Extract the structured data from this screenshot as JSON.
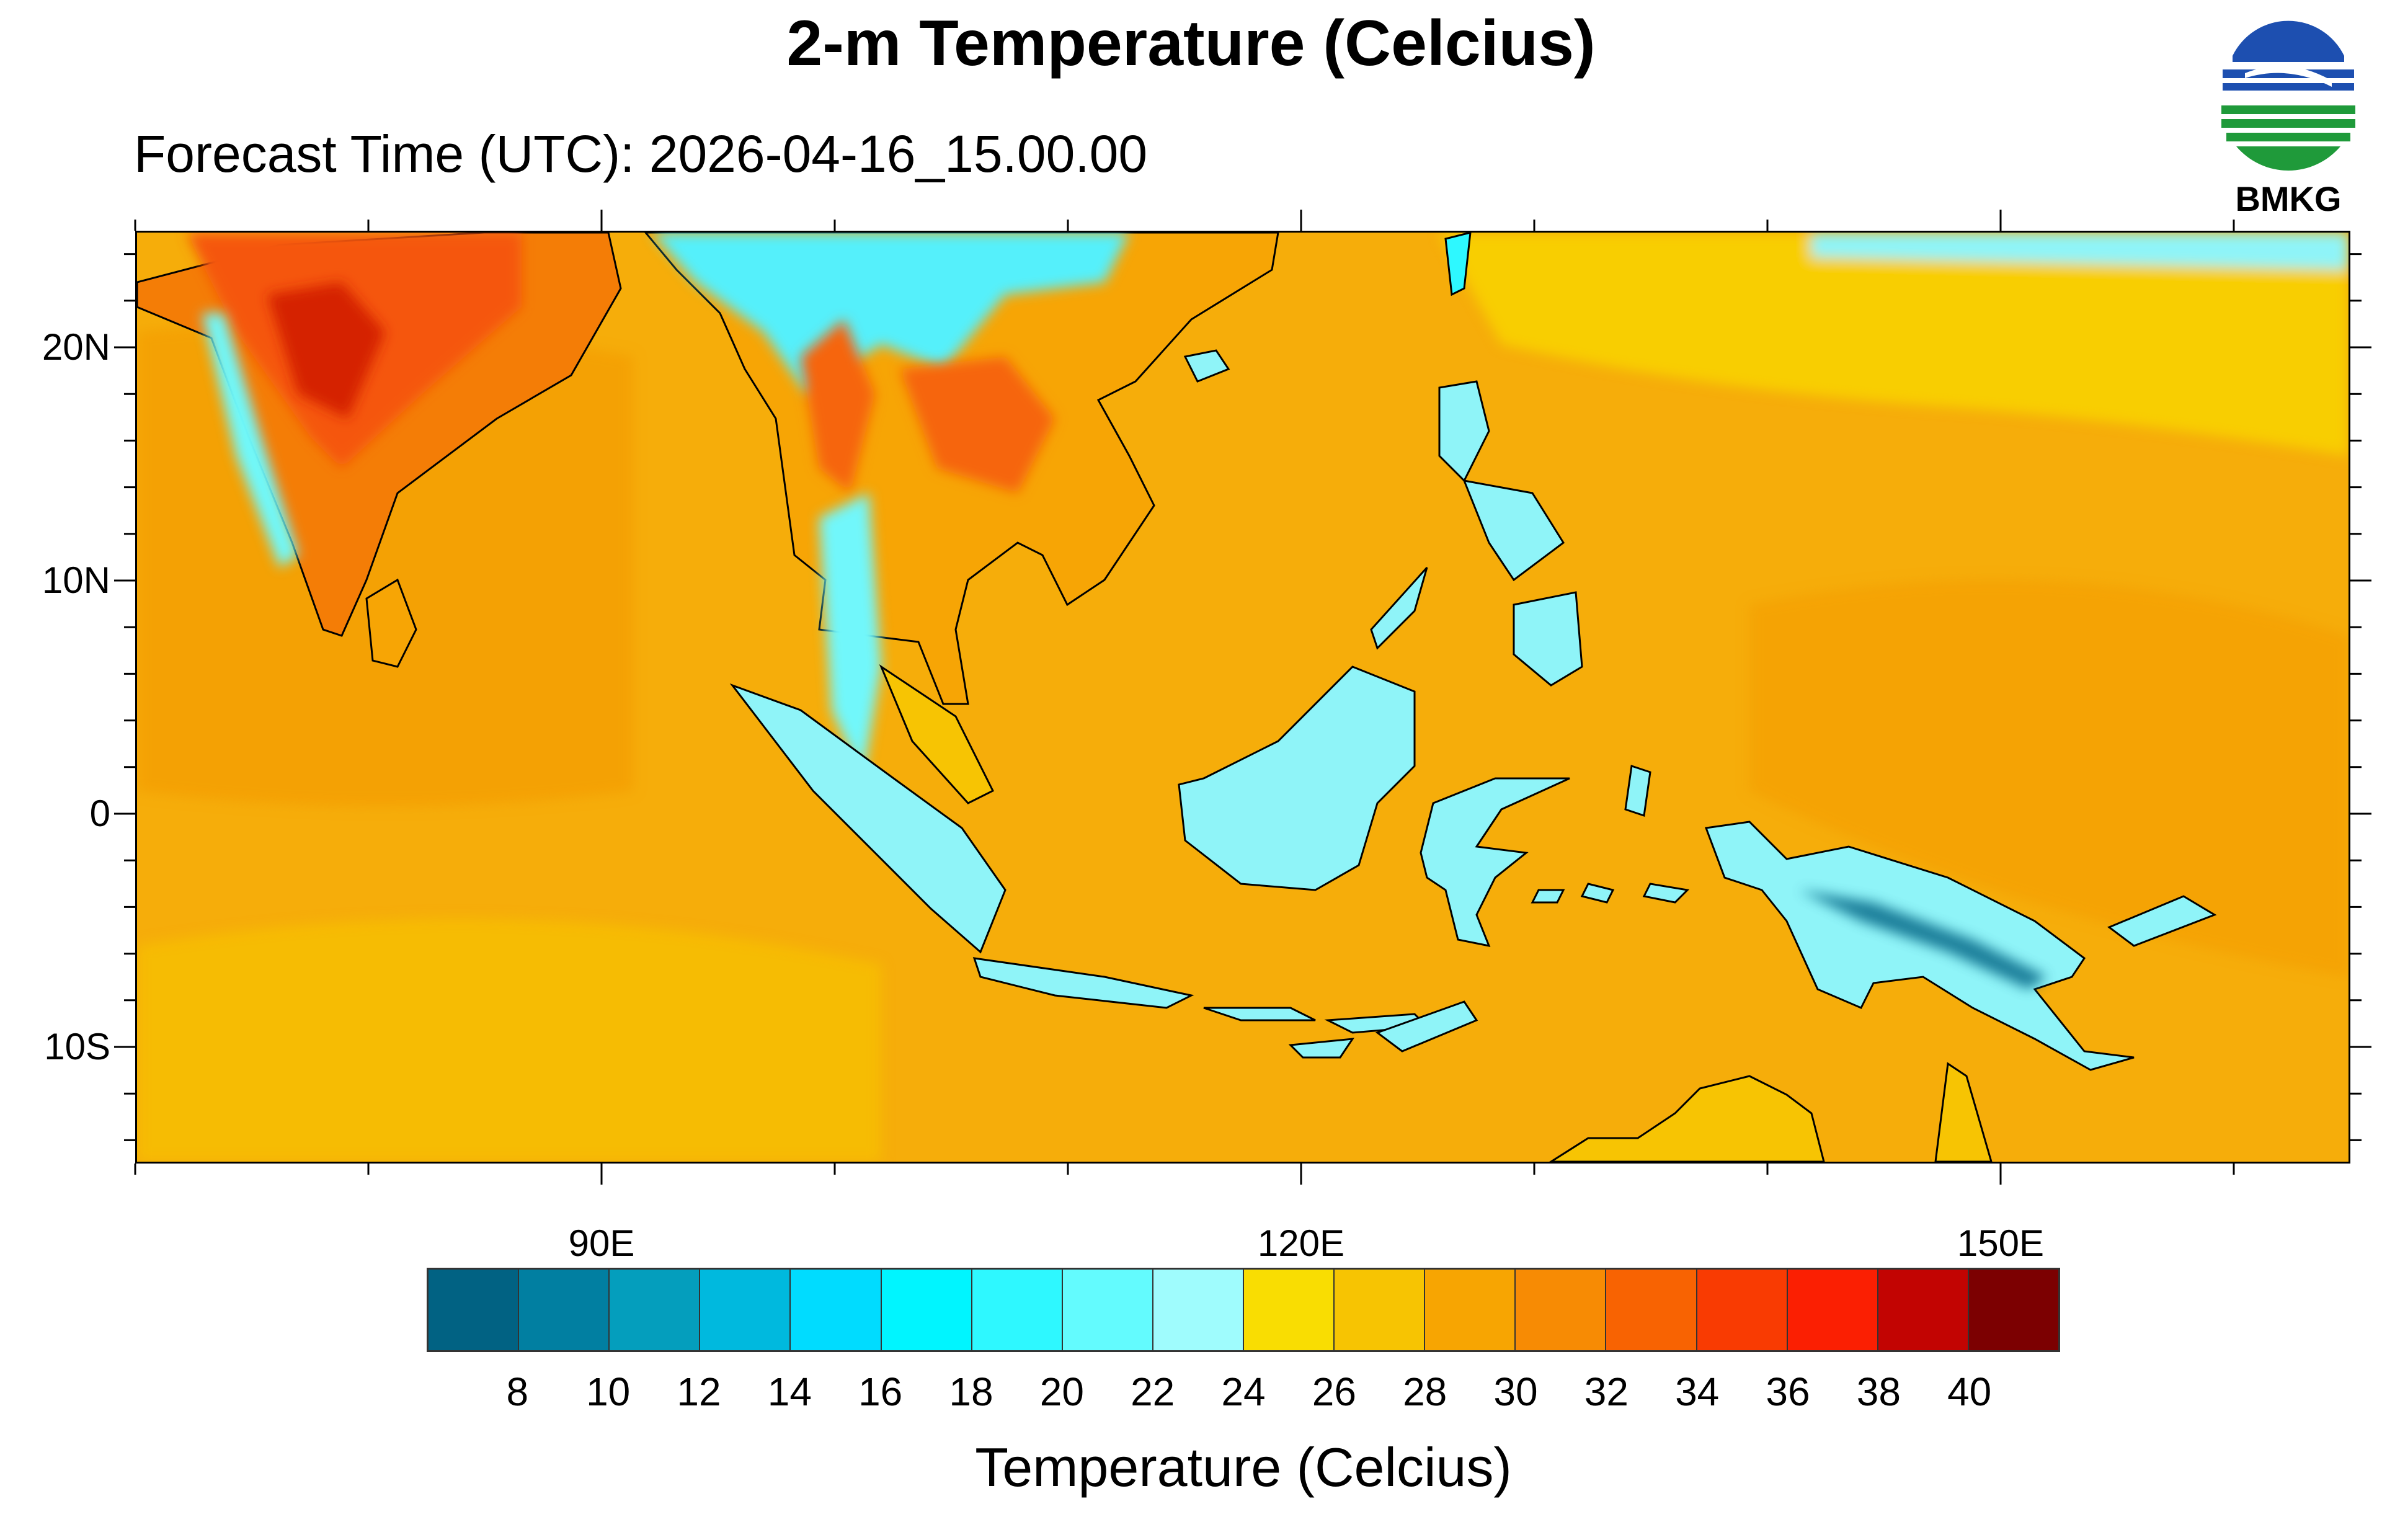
{
  "title": "2-m Temperature (Celcius)",
  "subtitle": "Forecast Time (UTC): 2026-04-16_15.00.00",
  "logo": {
    "text": "BMKG",
    "colors": {
      "blue": "#1d4fb0",
      "green": "#1f9a3a"
    }
  },
  "map": {
    "extent": {
      "lon_min": 70,
      "lon_max": 165,
      "lat_min": -15,
      "lat_max": 25
    },
    "background_color": "#f6ad0a",
    "lat_labels": [
      {
        "value": 20,
        "text": "20N"
      },
      {
        "value": 10,
        "text": "10N"
      },
      {
        "value": 0,
        "text": "0"
      },
      {
        "value": -10,
        "text": "10S"
      }
    ],
    "lon_labels": [
      {
        "value": 90,
        "text": "90E"
      },
      {
        "value": 120,
        "text": "120E"
      },
      {
        "value": 150,
        "text": "150E"
      }
    ],
    "lat_minor_ticks": [
      -14,
      -12,
      -10,
      -8,
      -6,
      -4,
      -2,
      0,
      2,
      4,
      6,
      8,
      10,
      12,
      14,
      16,
      18,
      20,
      22,
      24
    ],
    "lat_major_ticks": [
      -10,
      0,
      10,
      20
    ],
    "lon_minor_ticks": [
      70,
      80,
      90,
      100,
      110,
      120,
      130,
      140,
      150,
      160
    ],
    "lon_major_ticks": [
      90,
      120,
      150
    ]
  },
  "colorbar": {
    "colors": [
      "#016283",
      "#017fa1",
      "#049ebd",
      "#00b9de",
      "#00dcff",
      "#00f5ff",
      "#2ef8ff",
      "#63fbfe",
      "#9ffcfd",
      "#f9dd02",
      "#f7c402",
      "#f7a502",
      "#f78b04",
      "#f86302",
      "#f93b02",
      "#fb1f02",
      "#c20402",
      "#7c0001"
    ],
    "ticks": [
      "8",
      "10",
      "12",
      "14",
      "16",
      "18",
      "20",
      "22",
      "24",
      "26",
      "28",
      "30",
      "32",
      "34",
      "36",
      "38",
      "40"
    ],
    "label": "Temperature (Celcius)"
  }
}
